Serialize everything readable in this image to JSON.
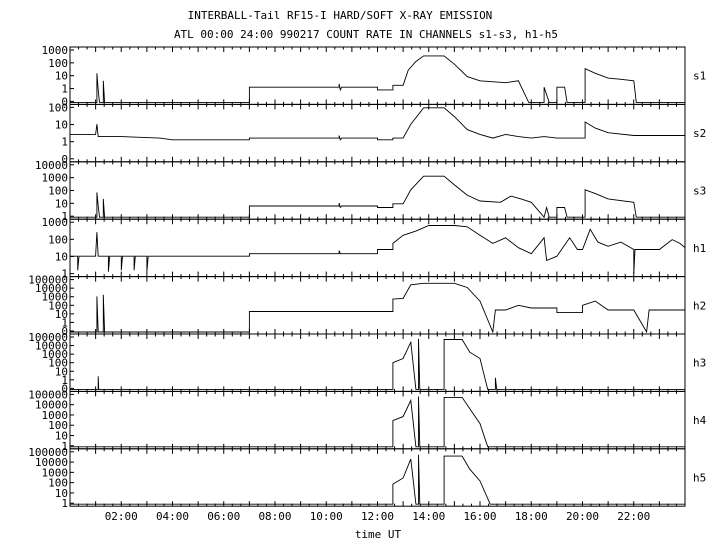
{
  "chart_data": {
    "type": "line",
    "title": "INTERBALL-Tail RF15-I HARD/SOFT X-RAY EMISSION",
    "subtitle": "ATL 00:00 24:00 990217  COUNT RATE IN CHANNELS s1-s3, h1-h5",
    "xlabel": "time UT",
    "x_tick_labels": [
      "02:00",
      "04:00",
      "06:00",
      "08:00",
      "10:00",
      "12:00",
      "14:00",
      "16:00",
      "18:00",
      "20:00",
      "22:00"
    ],
    "x_tick_hours": [
      2,
      4,
      6,
      8,
      10,
      12,
      14,
      16,
      18,
      20,
      22
    ],
    "xlim": [
      0,
      24
    ],
    "y_scale": "log",
    "grid": false,
    "panels": [
      {
        "name": "s1",
        "y_tick_labels": [
          "1000",
          "100",
          "10",
          "1",
          "0"
        ],
        "ylim": [
          0.3,
          1000
        ],
        "points": [
          [
            0,
            0.3
          ],
          [
            1.05,
            0.3
          ],
          [
            1.05,
            25
          ],
          [
            1.1,
            2
          ],
          [
            1.15,
            0.3
          ],
          [
            1.3,
            0.3
          ],
          [
            1.3,
            8
          ],
          [
            1.35,
            0.3
          ],
          [
            7.0,
            0.3
          ],
          [
            7.0,
            3
          ],
          [
            10.5,
            3
          ],
          [
            10.5,
            5
          ],
          [
            10.55,
            2
          ],
          [
            10.6,
            3
          ],
          [
            12.0,
            3
          ],
          [
            12.0,
            2
          ],
          [
            12.6,
            2
          ],
          [
            12.6,
            4
          ],
          [
            13.0,
            4
          ],
          [
            13.2,
            40
          ],
          [
            13.5,
            150
          ],
          [
            13.8,
            350
          ],
          [
            14.6,
            350
          ],
          [
            15.0,
            100
          ],
          [
            15.5,
            15
          ],
          [
            16.0,
            8
          ],
          [
            17.0,
            6
          ],
          [
            17.5,
            8
          ],
          [
            17.9,
            0.3
          ],
          [
            18.5,
            0.3
          ],
          [
            18.5,
            3
          ],
          [
            18.7,
            0.3
          ],
          [
            19.0,
            0.3
          ],
          [
            19.0,
            3
          ],
          [
            19.3,
            3
          ],
          [
            19.4,
            0.3
          ],
          [
            19.6,
            0.3
          ],
          [
            20.1,
            0.3
          ],
          [
            20.1,
            50
          ],
          [
            20.5,
            25
          ],
          [
            21.0,
            12
          ],
          [
            21.5,
            10
          ],
          [
            22.0,
            8
          ],
          [
            22.1,
            0.3
          ],
          [
            24,
            0.3
          ]
        ]
      },
      {
        "name": "s2",
        "y_tick_labels": [
          "100",
          "10",
          "1",
          "0"
        ],
        "ylim": [
          0.3,
          300
        ],
        "points": [
          [
            0,
            8
          ],
          [
            1.0,
            8
          ],
          [
            1.05,
            30
          ],
          [
            1.1,
            6
          ],
          [
            2.0,
            6
          ],
          [
            3.5,
            5
          ],
          [
            4.0,
            4
          ],
          [
            7.0,
            4
          ],
          [
            7.0,
            5
          ],
          [
            10.5,
            5
          ],
          [
            10.5,
            7
          ],
          [
            10.55,
            4
          ],
          [
            10.6,
            5
          ],
          [
            12.0,
            5
          ],
          [
            12.0,
            4
          ],
          [
            12.6,
            4
          ],
          [
            12.6,
            5
          ],
          [
            13.0,
            5
          ],
          [
            13.3,
            30
          ],
          [
            13.8,
            250
          ],
          [
            14.6,
            250
          ],
          [
            15.0,
            80
          ],
          [
            15.5,
            15
          ],
          [
            16.0,
            8
          ],
          [
            16.5,
            5
          ],
          [
            17.0,
            8
          ],
          [
            17.5,
            6
          ],
          [
            18.0,
            5
          ],
          [
            18.5,
            6
          ],
          [
            19.0,
            5
          ],
          [
            19.5,
            5
          ],
          [
            20.1,
            5
          ],
          [
            20.1,
            40
          ],
          [
            20.5,
            18
          ],
          [
            21.0,
            10
          ],
          [
            22.0,
            7
          ],
          [
            24,
            7
          ]
        ]
      },
      {
        "name": "s3",
        "y_tick_labels": [
          "10000",
          "1000",
          "100",
          "10",
          "1"
        ],
        "ylim": [
          0.5,
          10000
        ],
        "points": [
          [
            0,
            0.5
          ],
          [
            1.05,
            0.5
          ],
          [
            1.05,
            50
          ],
          [
            1.1,
            4
          ],
          [
            1.15,
            0.5
          ],
          [
            1.3,
            0.5
          ],
          [
            1.3,
            15
          ],
          [
            1.35,
            0.5
          ],
          [
            7.0,
            0.5
          ],
          [
            7.0,
            4
          ],
          [
            10.5,
            4
          ],
          [
            10.5,
            7
          ],
          [
            10.55,
            3
          ],
          [
            10.6,
            4
          ],
          [
            12.0,
            4
          ],
          [
            12.0,
            3
          ],
          [
            12.6,
            3
          ],
          [
            12.6,
            6
          ],
          [
            13.0,
            6
          ],
          [
            13.3,
            80
          ],
          [
            13.8,
            1000
          ],
          [
            14.6,
            1000
          ],
          [
            15.0,
            200
          ],
          [
            15.5,
            30
          ],
          [
            16.0,
            10
          ],
          [
            16.8,
            8
          ],
          [
            17.2,
            25
          ],
          [
            17.6,
            15
          ],
          [
            18.0,
            8
          ],
          [
            18.5,
            0.5
          ],
          [
            18.6,
            3
          ],
          [
            18.7,
            0.5
          ],
          [
            19.0,
            0.5
          ],
          [
            19.0,
            3
          ],
          [
            19.3,
            3
          ],
          [
            19.4,
            0.5
          ],
          [
            20.1,
            0.5
          ],
          [
            20.1,
            80
          ],
          [
            20.5,
            40
          ],
          [
            21.0,
            15
          ],
          [
            22.0,
            8
          ],
          [
            22.1,
            0.5
          ],
          [
            24,
            0.5
          ]
        ]
      },
      {
        "name": "h1",
        "y_tick_labels": [
          "1000",
          "100",
          "10",
          "1"
        ],
        "ylim": [
          0.5,
          3000
        ],
        "points": [
          [
            0,
            10
          ],
          [
            0.3,
            10
          ],
          [
            0.3,
            1
          ],
          [
            0.35,
            10
          ],
          [
            1.0,
            10
          ],
          [
            1.05,
            500
          ],
          [
            1.1,
            10
          ],
          [
            1.5,
            10
          ],
          [
            1.5,
            0.8
          ],
          [
            1.55,
            10
          ],
          [
            2.0,
            10
          ],
          [
            2.0,
            1
          ],
          [
            2.05,
            10
          ],
          [
            2.5,
            10
          ],
          [
            2.5,
            1
          ],
          [
            2.55,
            10
          ],
          [
            3.0,
            10
          ],
          [
            3.0,
            0.8
          ],
          [
            3.05,
            10
          ],
          [
            3.3,
            10
          ],
          [
            4.0,
            10
          ],
          [
            7.0,
            10
          ],
          [
            7.0,
            15
          ],
          [
            10.5,
            15
          ],
          [
            10.5,
            25
          ],
          [
            10.55,
            15
          ],
          [
            12.0,
            15
          ],
          [
            12.0,
            30
          ],
          [
            12.6,
            30
          ],
          [
            12.6,
            80
          ],
          [
            13.0,
            300
          ],
          [
            13.5,
            600
          ],
          [
            14.0,
            1500
          ],
          [
            15.0,
            1500
          ],
          [
            15.5,
            1200
          ],
          [
            16.0,
            300
          ],
          [
            16.5,
            80
          ],
          [
            17.0,
            200
          ],
          [
            17.5,
            40
          ],
          [
            18.0,
            15
          ],
          [
            18.5,
            200
          ],
          [
            18.6,
            5
          ],
          [
            19.0,
            10
          ],
          [
            19.5,
            200
          ],
          [
            19.8,
            30
          ],
          [
            20.0,
            30
          ],
          [
            20.3,
            800
          ],
          [
            20.6,
            100
          ],
          [
            21.0,
            50
          ],
          [
            21.5,
            100
          ],
          [
            22.0,
            30
          ],
          [
            22.0,
            0.6
          ],
          [
            22.05,
            30
          ],
          [
            23.0,
            30
          ],
          [
            23.5,
            150
          ],
          [
            23.8,
            80
          ],
          [
            24,
            40
          ]
        ]
      },
      {
        "name": "h2",
        "y_tick_labels": [
          "100000",
          "10000",
          "1000",
          "100",
          "10",
          "1",
          "0"
        ],
        "ylim": [
          0.1,
          100000
        ],
        "points": [
          [
            0,
            0.1
          ],
          [
            1.05,
            0.1
          ],
          [
            1.05,
            1000
          ],
          [
            1.1,
            0.1
          ],
          [
            1.3,
            0.1
          ],
          [
            1.3,
            1500
          ],
          [
            1.35,
            0.1
          ],
          [
            7.0,
            0.1
          ],
          [
            7.0,
            20
          ],
          [
            12.0,
            20
          ],
          [
            12.6,
            20
          ],
          [
            12.6,
            500
          ],
          [
            13.0,
            600
          ],
          [
            13.3,
            20000
          ],
          [
            13.8,
            30000
          ],
          [
            15.0,
            30000
          ],
          [
            15.5,
            10000
          ],
          [
            16.0,
            300
          ],
          [
            16.5,
            0.1
          ],
          [
            16.6,
            30
          ],
          [
            17.0,
            30
          ],
          [
            17.5,
            100
          ],
          [
            18.0,
            50
          ],
          [
            19.0,
            50
          ],
          [
            19.0,
            15
          ],
          [
            20.0,
            15
          ],
          [
            20.0,
            100
          ],
          [
            20.5,
            300
          ],
          [
            21.0,
            30
          ],
          [
            22.0,
            30
          ],
          [
            22.5,
            0.1
          ],
          [
            22.6,
            30
          ],
          [
            23.5,
            30
          ],
          [
            24,
            30
          ]
        ]
      },
      {
        "name": "h3",
        "y_tick_labels": [
          "100000",
          "10000",
          "1000",
          "100",
          "10",
          "1",
          "0"
        ],
        "ylim": [
          0.1,
          100000
        ],
        "points": [
          [
            0,
            0.1
          ],
          [
            1.1,
            0.1
          ],
          [
            1.1,
            3
          ],
          [
            1.12,
            0.1
          ],
          [
            12.6,
            0.1
          ],
          [
            12.6,
            100
          ],
          [
            13.0,
            300
          ],
          [
            13.3,
            20000
          ],
          [
            13.5,
            0.1
          ],
          [
            13.6,
            0.1
          ],
          [
            13.6,
            50000
          ],
          [
            13.65,
            0.1
          ],
          [
            14.6,
            0.1
          ],
          [
            14.6,
            40000
          ],
          [
            15.3,
            40000
          ],
          [
            15.6,
            1500
          ],
          [
            16.0,
            300
          ],
          [
            16.3,
            0.1
          ],
          [
            16.6,
            0.1
          ],
          [
            16.6,
            2
          ],
          [
            16.65,
            0.1
          ],
          [
            24,
            0.1
          ]
        ]
      },
      {
        "name": "h4",
        "y_tick_labels": [
          "100000",
          "10000",
          "1000",
          "100",
          "10",
          "1"
        ],
        "ylim": [
          0.5,
          100000
        ],
        "points": [
          [
            0,
            0.5
          ],
          [
            12.6,
            0.5
          ],
          [
            12.6,
            200
          ],
          [
            13.0,
            500
          ],
          [
            13.3,
            20000
          ],
          [
            13.5,
            0.5
          ],
          [
            13.6,
            0.5
          ],
          [
            13.6,
            50000
          ],
          [
            13.65,
            0.5
          ],
          [
            14.6,
            0.5
          ],
          [
            14.6,
            40000
          ],
          [
            15.3,
            40000
          ],
          [
            15.6,
            3000
          ],
          [
            16.0,
            100
          ],
          [
            16.3,
            0.5
          ],
          [
            24,
            0.5
          ]
        ]
      },
      {
        "name": "h5",
        "y_tick_labels": [
          "100000",
          "10000",
          "1000",
          "100",
          "10",
          "1"
        ],
        "ylim": [
          0.5,
          100000
        ],
        "points": [
          [
            0,
            0.5
          ],
          [
            12.6,
            0.5
          ],
          [
            12.6,
            50
          ],
          [
            13.0,
            200
          ],
          [
            13.3,
            15000
          ],
          [
            13.5,
            0.5
          ],
          [
            13.6,
            0.5
          ],
          [
            13.6,
            40000
          ],
          [
            13.65,
            0.5
          ],
          [
            14.6,
            0.5
          ],
          [
            14.6,
            30000
          ],
          [
            15.3,
            30000
          ],
          [
            15.6,
            1500
          ],
          [
            16.0,
            100
          ],
          [
            16.4,
            0.5
          ],
          [
            24,
            0.5
          ]
        ]
      }
    ]
  }
}
